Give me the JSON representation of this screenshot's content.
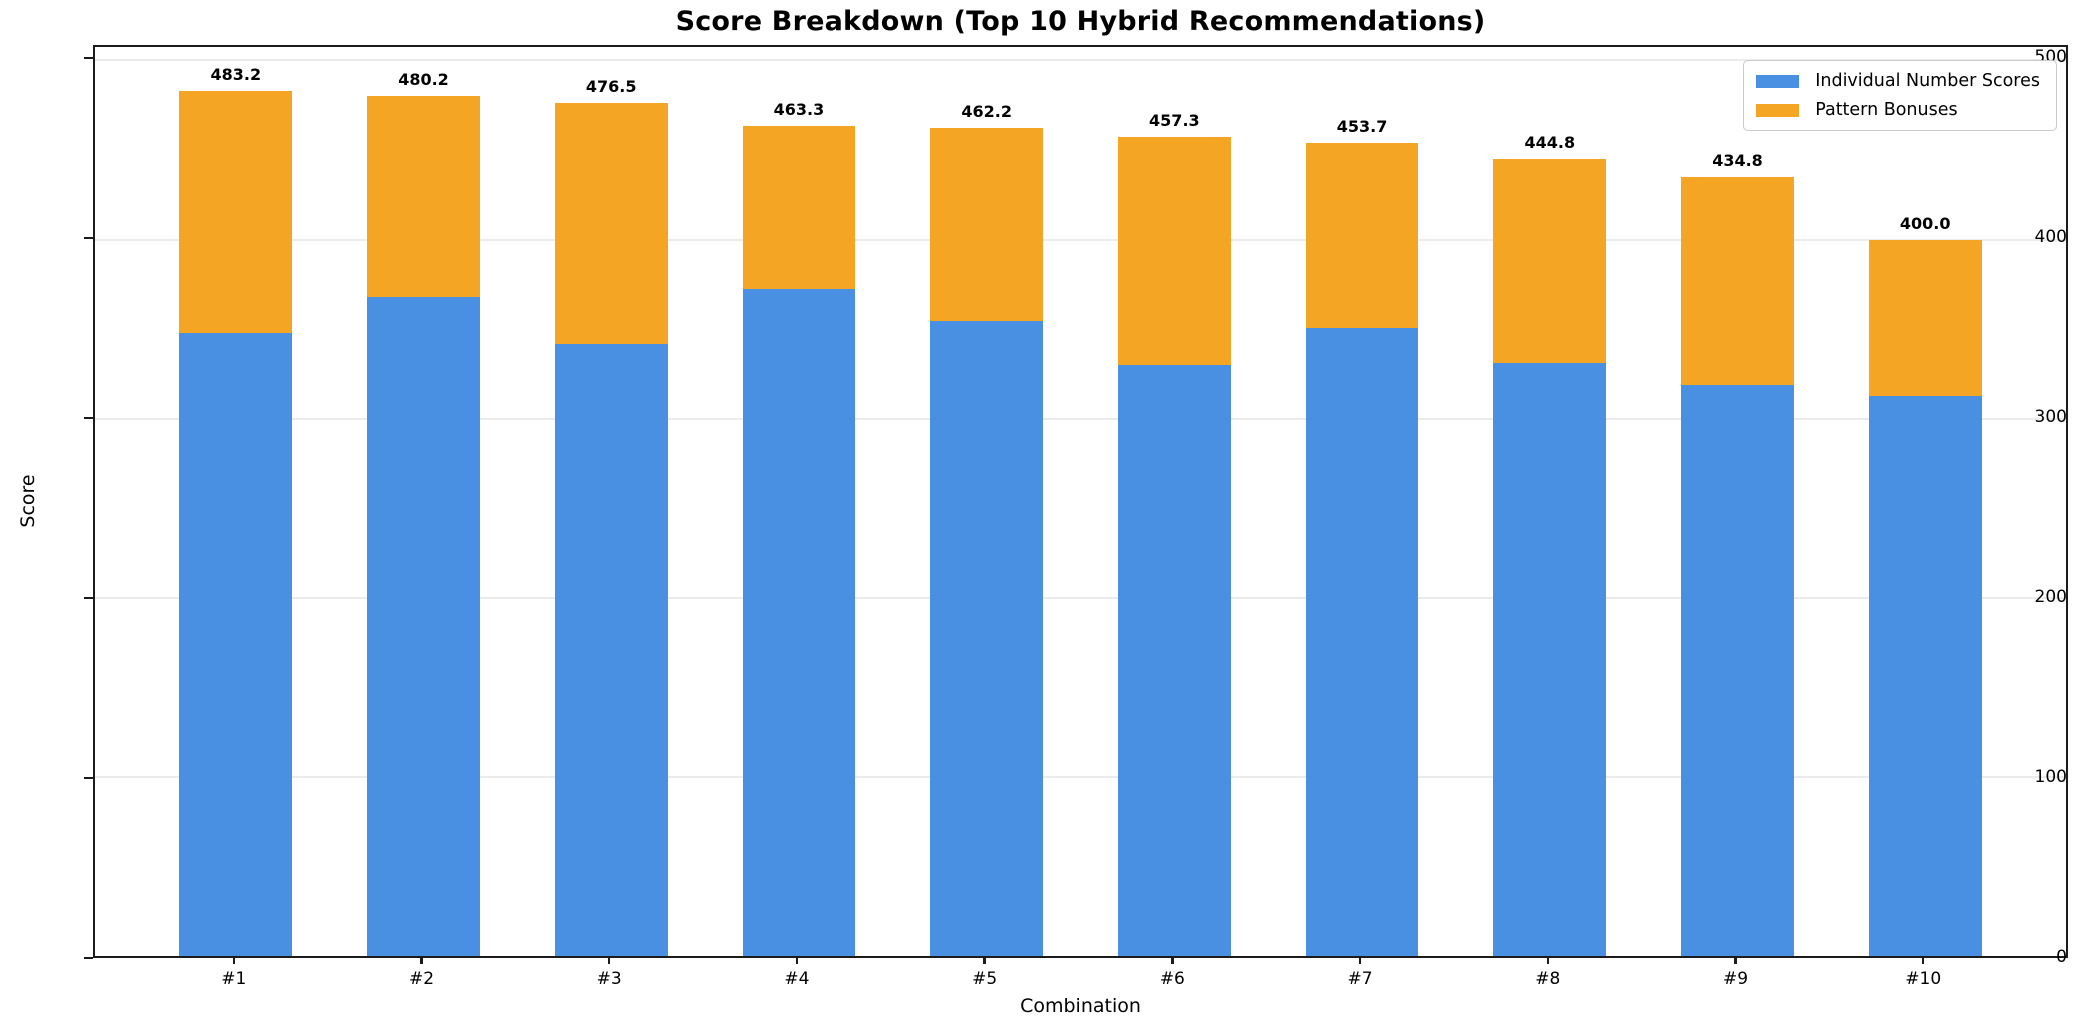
{
  "chart_data": {
    "type": "bar",
    "stacked": true,
    "title": "Score Breakdown (Top 10 Hybrid Recommendations)",
    "xlabel": "Combination",
    "ylabel": "Score",
    "categories": [
      "#1",
      "#2",
      "#3",
      "#4",
      "#5",
      "#6",
      "#7",
      "#8",
      "#9",
      "#10"
    ],
    "series": [
      {
        "name": "Individual Number Scores",
        "color": "#4a90e2",
        "values": [
          348.0,
          368.0,
          341.5,
          372.5,
          354.5,
          330.0,
          350.5,
          331.0,
          319.0,
          312.5
        ]
      },
      {
        "name": "Pattern Bonuses",
        "color": "#f5a524",
        "values": [
          135.2,
          112.2,
          135.0,
          90.8,
          107.7,
          127.3,
          103.2,
          113.8,
          115.8,
          87.5
        ]
      }
    ],
    "totals": [
      483.2,
      480.2,
      476.5,
      463.3,
      462.2,
      457.3,
      453.7,
      444.8,
      434.8,
      400.0
    ],
    "total_labels": [
      "483.2",
      "480.2",
      "476.5",
      "463.3",
      "462.2",
      "457.3",
      "453.7",
      "444.8",
      "434.8",
      "400.0"
    ],
    "ylim": [
      0,
      500
    ],
    "yticks": [
      0,
      100,
      200,
      300,
      400,
      500
    ],
    "grid": true,
    "legend_position": "upper right"
  }
}
